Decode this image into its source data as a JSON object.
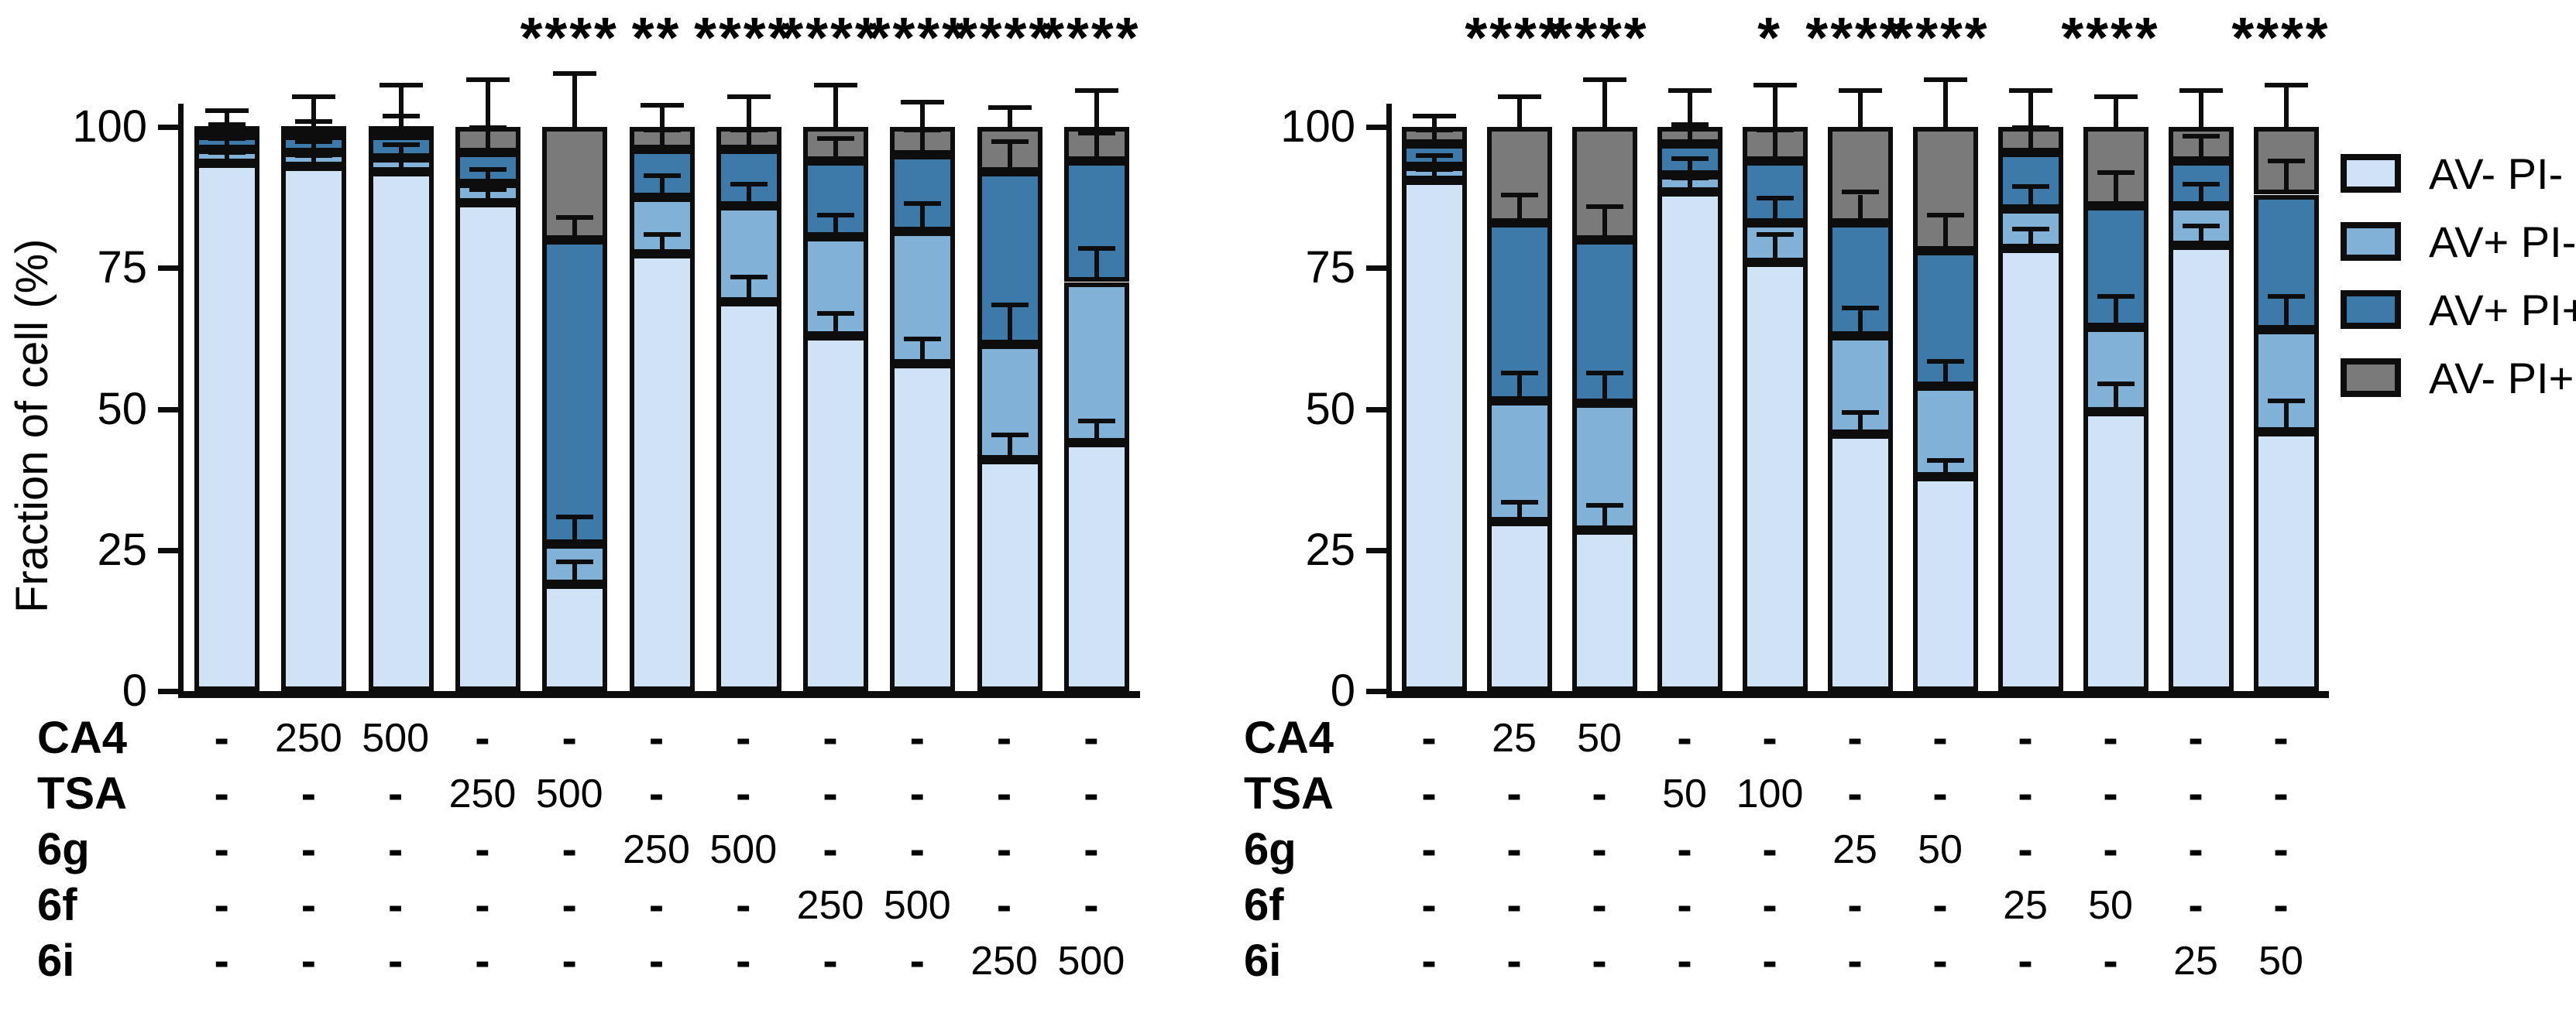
{
  "colors": {
    "av_neg_pi_neg": "#cfe2f6",
    "av_pos_pi_neg": "#82b1d8",
    "av_pos_pi_pos": "#3d79a9",
    "av_neg_pi_pos": "#7a7a7a",
    "outline": "#0d0d0d"
  },
  "legend": {
    "items": [
      {
        "label": "AV- PI-",
        "color_key": "av_neg_pi_neg"
      },
      {
        "label": "AV+ PI-",
        "color_key": "av_pos_pi_neg"
      },
      {
        "label": "AV+ PI+",
        "color_key": "av_pos_pi_pos"
      },
      {
        "label": "AV- PI+",
        "color_key": "av_neg_pi_pos"
      }
    ]
  },
  "chart_data": [
    {
      "type": "bar",
      "stacked": true,
      "title": "",
      "ylabel": "Fraction of cell (%)",
      "ylim": [
        0,
        100
      ],
      "yticks": [
        0,
        25,
        50,
        75,
        100
      ],
      "ytick_labels": [
        "0",
        "25",
        "50",
        "75",
        "100"
      ],
      "series_order": [
        "AV- PI-",
        "AV+ PI-",
        "AV+ PI+",
        "AV- PI+"
      ],
      "bars": [
        {
          "condition": "control",
          "values": [
            93.5,
            2.5,
            2.5,
            1.5
          ],
          "sig": "",
          "err_top": 2.5,
          "err_internal": [
            1.5,
            1.5,
            1.5
          ]
        },
        {
          "condition": "CA4 250",
          "values": [
            93,
            2.5,
            3,
            1.5
          ],
          "sig": "",
          "err_top": 5,
          "err_internal": [
            1.5,
            1.5,
            2
          ]
        },
        {
          "condition": "CA4 500",
          "values": [
            92,
            2.5,
            4,
            1.5
          ],
          "sig": "",
          "err_top": 7,
          "err_internal": [
            2,
            2,
            3
          ]
        },
        {
          "condition": "TSA 250",
          "values": [
            86.5,
            3.5,
            5.5,
            4.5
          ],
          "sig": "",
          "err_top": 8,
          "err_internal": [
            2,
            2,
            4
          ]
        },
        {
          "condition": "TSA 500",
          "values": [
            19,
            7,
            54,
            20
          ],
          "sig": "****",
          "err_top": 9,
          "err_internal": [
            3.5,
            4.5,
            3.5
          ]
        },
        {
          "condition": "6g 250",
          "values": [
            77.5,
            10,
            8.5,
            4
          ],
          "sig": "**",
          "err_top": 3.5,
          "err_internal": [
            3,
            3.5,
            3
          ]
        },
        {
          "condition": "6g 500",
          "values": [
            69,
            17,
            10,
            4
          ],
          "sig": "****",
          "err_top": 5,
          "err_internal": [
            4,
            3.5,
            3
          ]
        },
        {
          "condition": "6f 250",
          "values": [
            63,
            17.5,
            13.5,
            6
          ],
          "sig": "****",
          "err_top": 7,
          "err_internal": [
            3.5,
            3.5,
            3.5
          ]
        },
        {
          "condition": "6f 500",
          "values": [
            58,
            23.5,
            13.5,
            5
          ],
          "sig": "****",
          "err_top": 4,
          "err_internal": [
            4,
            4.5,
            4
          ]
        },
        {
          "condition": "6i 250",
          "values": [
            41,
            20.5,
            30.5,
            8
          ],
          "sig": "****",
          "err_top": 3,
          "err_internal": [
            4,
            6.5,
            5
          ]
        },
        {
          "condition": "6i 500",
          "values": [
            44,
            28.5,
            21.5,
            6
          ],
          "sig": "****",
          "err_top": 6,
          "err_internal": [
            3.5,
            5.5,
            4.5
          ]
        }
      ],
      "dose_rows": [
        {
          "label": "CA4",
          "values": [
            "-",
            "250",
            "500",
            "-",
            "-",
            "-",
            "-",
            "-",
            "-",
            "-",
            "-"
          ]
        },
        {
          "label": "TSA",
          "values": [
            "-",
            "-",
            "-",
            "250",
            "500",
            "-",
            "-",
            "-",
            "-",
            "-",
            "-"
          ]
        },
        {
          "label": "6g",
          "values": [
            "-",
            "-",
            "-",
            "-",
            "-",
            "250",
            "500",
            "-",
            "-",
            "-",
            "-"
          ]
        },
        {
          "label": "6f",
          "values": [
            "-",
            "-",
            "-",
            "-",
            "-",
            "-",
            "-",
            "250",
            "500",
            "-",
            "-"
          ]
        },
        {
          "label": "6i",
          "values": [
            "-",
            "-",
            "-",
            "-",
            "-",
            "-",
            "-",
            "-",
            "-",
            "250",
            "500"
          ]
        }
      ]
    },
    {
      "type": "bar",
      "stacked": true,
      "title": "",
      "ylabel": "",
      "ylim": [
        0,
        100
      ],
      "yticks": [
        0,
        25,
        50,
        75,
        100
      ],
      "ytick_labels": [
        "0",
        "25",
        "50",
        "75",
        "100"
      ],
      "series_order": [
        "AV- PI-",
        "AV+ PI-",
        "AV+ PI+",
        "AV- PI+"
      ],
      "bars": [
        {
          "condition": "control",
          "values": [
            90.5,
            2.5,
            4,
            3
          ],
          "sig": "",
          "err_top": 1.5,
          "err_internal": [
            1.5,
            1.5,
            2
          ]
        },
        {
          "condition": "CA4 25",
          "values": [
            30,
            21.5,
            31.5,
            17
          ],
          "sig": "****",
          "err_top": 5,
          "err_internal": [
            3,
            4.5,
            4.5
          ]
        },
        {
          "condition": "CA4 50",
          "values": [
            28.5,
            22.5,
            29,
            20
          ],
          "sig": "****",
          "err_top": 8,
          "err_internal": [
            4,
            5,
            5.5
          ]
        },
        {
          "condition": "TSA 50",
          "values": [
            88.5,
            3,
            5.5,
            3
          ],
          "sig": "",
          "err_top": 6,
          "err_internal": [
            2,
            2.5,
            3
          ]
        },
        {
          "condition": "TSA 100",
          "values": [
            76,
            7,
            11,
            6
          ],
          "sig": "*",
          "err_top": 7,
          "err_internal": [
            4.5,
            4,
            5
          ]
        },
        {
          "condition": "6g 25",
          "values": [
            45.5,
            17.5,
            20,
            17
          ],
          "sig": "****",
          "err_top": 6,
          "err_internal": [
            3.5,
            4.5,
            5
          ]
        },
        {
          "condition": "6g 50",
          "values": [
            38,
            16,
            24,
            22
          ],
          "sig": "****",
          "err_top": 8,
          "err_internal": [
            2.5,
            4,
            6
          ]
        },
        {
          "condition": "6f 25",
          "values": [
            78.5,
            7,
            10,
            4.5
          ],
          "sig": "",
          "err_top": 6,
          "err_internal": [
            3,
            3.5,
            4
          ]
        },
        {
          "condition": "6f 50",
          "values": [
            49.5,
            15,
            21.5,
            14
          ],
          "sig": "****",
          "err_top": 5,
          "err_internal": [
            4.5,
            5,
            5.5
          ]
        },
        {
          "condition": "6i 25",
          "values": [
            79,
            7,
            8,
            6
          ],
          "sig": "",
          "err_top": 6,
          "err_internal": [
            3,
            3.5,
            4
          ]
        },
        {
          "condition": "6i 50",
          "values": [
            46,
            18,
            24,
            12
          ],
          "sig": "****",
          "err_top": 7,
          "err_internal": [
            5,
            5.5,
            5.5
          ]
        }
      ],
      "dose_rows": [
        {
          "label": "CA4",
          "values": [
            "-",
            "25",
            "50",
            "-",
            "-",
            "-",
            "-",
            "-",
            "-",
            "-",
            "-"
          ]
        },
        {
          "label": "TSA",
          "values": [
            "-",
            "-",
            "-",
            "50",
            "100",
            "-",
            "-",
            "-",
            "-",
            "-",
            "-"
          ]
        },
        {
          "label": "6g",
          "values": [
            "-",
            "-",
            "-",
            "-",
            "-",
            "25",
            "50",
            "-",
            "-",
            "-",
            "-"
          ]
        },
        {
          "label": "6f",
          "values": [
            "-",
            "-",
            "-",
            "-",
            "-",
            "-",
            "-",
            "25",
            "50",
            "-",
            "-"
          ]
        },
        {
          "label": "6i",
          "values": [
            "-",
            "-",
            "-",
            "-",
            "-",
            "-",
            "-",
            "-",
            "-",
            "25",
            "50"
          ]
        }
      ]
    }
  ]
}
